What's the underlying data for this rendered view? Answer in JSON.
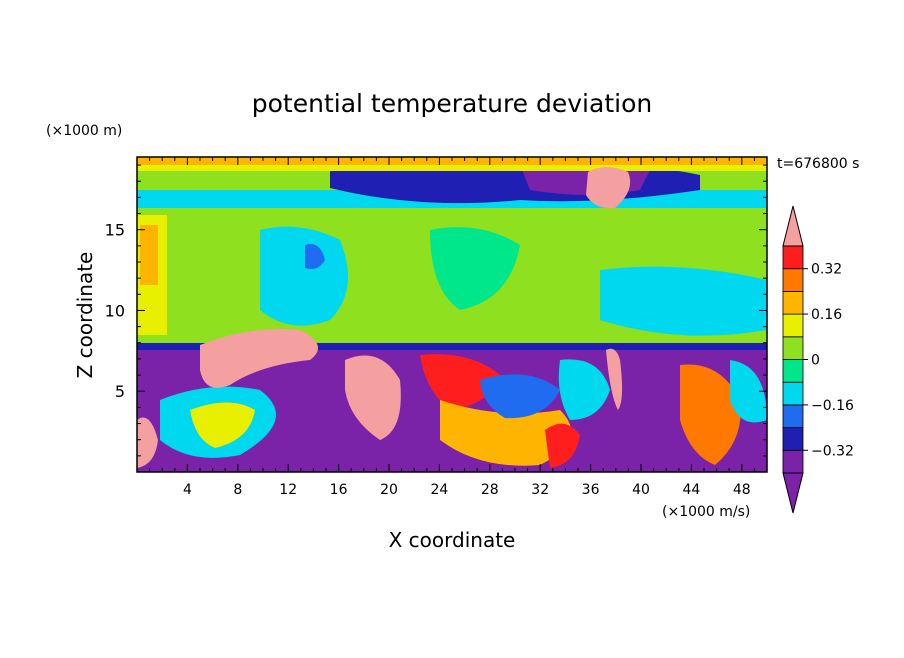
{
  "chart_data": {
    "type": "heatmap",
    "title": "potential temperature deviation",
    "xlabel": "X coordinate",
    "ylabel": "Z coordinate",
    "x_unit": "(×1000 m/s)",
    "y_unit": "(×1000 m)",
    "time_label": "t=676800 s",
    "xlim": [
      0,
      50
    ],
    "ylim": [
      0,
      19.5
    ],
    "x_ticks": [
      4,
      8,
      12,
      16,
      20,
      24,
      28,
      32,
      36,
      40,
      44,
      48
    ],
    "y_ticks": [
      5,
      10,
      15
    ],
    "colorbar": {
      "levels": [
        -0.4,
        -0.32,
        -0.24,
        -0.16,
        -0.08,
        0,
        0.08,
        0.16,
        0.24,
        0.32,
        0.4
      ],
      "labels": [
        "0.32",
        "0.16",
        "0",
        "−0.16",
        "−0.32"
      ],
      "label_values": [
        0.32,
        0.16,
        0,
        -0.16,
        -0.32
      ],
      "colors": [
        "#7a22a8",
        "#1f1fb4",
        "#1f6cf0",
        "#00d8f0",
        "#00e68a",
        "#8fe01e",
        "#e8f000",
        "#ffb400",
        "#ff7800",
        "#ff1e1e"
      ],
      "over_color": "#f5a0a0",
      "under_color": "#7a22a8"
    },
    "field_summary": [
      {
        "region": "z 0–7.5 km",
        "pattern": "large overturning eddies, negative cores (~−0.4) with positive filaments up to >0.4"
      },
      {
        "region": "z 7.5–17 km",
        "pattern": "mostly 0 to +0.16, cyan patches near −0.08"
      },
      {
        "region": "z 17–19.5 km",
        "pattern": "strong negative band (−0.4) with positive cap at top and a >0.4 blob near x≈37"
      }
    ]
  }
}
